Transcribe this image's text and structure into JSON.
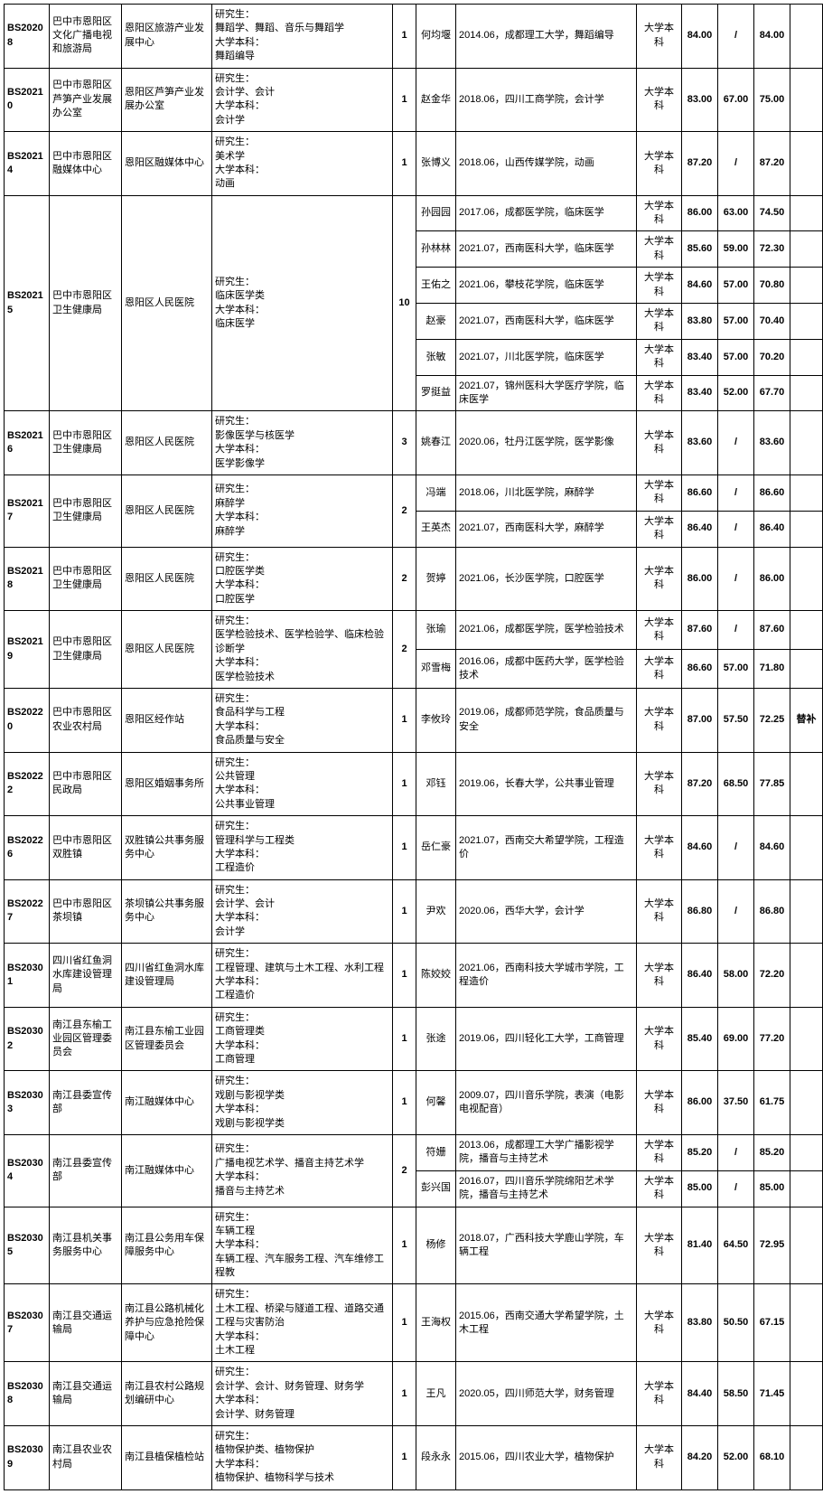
{
  "rows": [
    {
      "code": "BS20208",
      "dept": "巴中市恩阳区文化广播电视和旅游局",
      "unit": "恩阳区旅游产业发展中心",
      "req": "研究生：\n舞蹈学、舞蹈、音乐与舞蹈学\n大学本科：\n舞蹈编导",
      "cnt": "1",
      "people": [
        {
          "name": "何均堰",
          "edu": "2014.06，成都理工大学，舞蹈编导",
          "level": "大学本科",
          "s1": "84.00",
          "s2": "/",
          "s3": "84.00",
          "note": ""
        }
      ]
    },
    {
      "code": "BS20210",
      "dept": "巴中市恩阳区芦笋产业发展办公室",
      "unit": "恩阳区芦笋产业发展办公室",
      "req": "研究生：\n会计学、会计\n大学本科：\n会计学",
      "cnt": "1",
      "people": [
        {
          "name": "赵金华",
          "edu": "2018.06，四川工商学院，会计学",
          "level": "大学本科",
          "s1": "83.00",
          "s2": "67.00",
          "s3": "75.00",
          "note": ""
        }
      ]
    },
    {
      "code": "BS20214",
      "dept": "巴中市恩阳区融媒体中心",
      "unit": "恩阳区融媒体中心",
      "req": "研究生：\n美术学\n大学本科：\n动画",
      "cnt": "1",
      "people": [
        {
          "name": "张博义",
          "edu": "2018.06，山西传媒学院，动画",
          "level": "大学本科",
          "s1": "87.20",
          "s2": "/",
          "s3": "87.20",
          "note": ""
        }
      ]
    },
    {
      "code": "BS20215",
      "dept": "巴中市恩阳区卫生健康局",
      "unit": "恩阳区人民医院",
      "req": "研究生：\n临床医学类\n大学本科：\n临床医学",
      "cnt": "10",
      "people": [
        {
          "name": "孙园园",
          "edu": "2017.06，成都医学院，临床医学",
          "level": "大学本科",
          "s1": "86.00",
          "s2": "63.00",
          "s3": "74.50",
          "note": ""
        },
        {
          "name": "孙林林",
          "edu": "2021.07，西南医科大学，临床医学",
          "level": "大学本科",
          "s1": "85.60",
          "s2": "59.00",
          "s3": "72.30",
          "note": ""
        },
        {
          "name": "王佑之",
          "edu": "2021.06，攀枝花学院，临床医学",
          "level": "大学本科",
          "s1": "84.60",
          "s2": "57.00",
          "s3": "70.80",
          "note": ""
        },
        {
          "name": "赵豪",
          "edu": "2021.07，西南医科大学，临床医学",
          "level": "大学本科",
          "s1": "83.80",
          "s2": "57.00",
          "s3": "70.40",
          "note": ""
        },
        {
          "name": "张敏",
          "edu": "2021.07，川北医学院，临床医学",
          "level": "大学本科",
          "s1": "83.40",
          "s2": "57.00",
          "s3": "70.20",
          "note": ""
        },
        {
          "name": "罗挺益",
          "edu": "2021.07，锦州医科大学医疗学院，临床医学",
          "level": "大学本科",
          "s1": "83.40",
          "s2": "52.00",
          "s3": "67.70",
          "note": ""
        }
      ]
    },
    {
      "code": "BS20216",
      "dept": "巴中市恩阳区卫生健康局",
      "unit": "恩阳区人民医院",
      "req": "研究生：\n影像医学与核医学\n大学本科：\n医学影像学",
      "cnt": "3",
      "people": [
        {
          "name": "姚春江",
          "edu": "2020.06，牡丹江医学院，医学影像",
          "level": "大学本科",
          "s1": "83.60",
          "s2": "/",
          "s3": "83.60",
          "note": ""
        }
      ]
    },
    {
      "code": "BS20217",
      "dept": "巴中市恩阳区卫生健康局",
      "unit": "恩阳区人民医院",
      "req": "研究生：\n麻醉学\n大学本科：\n麻醉学",
      "cnt": "2",
      "people": [
        {
          "name": "冯端",
          "edu": "2018.06，川北医学院，麻醉学",
          "level": "大学本科",
          "s1": "86.60",
          "s2": "/",
          "s3": "86.60",
          "note": ""
        },
        {
          "name": "王英杰",
          "edu": "2021.07，西南医科大学，麻醉学",
          "level": "大学本科",
          "s1": "86.40",
          "s2": "/",
          "s3": "86.40",
          "note": ""
        }
      ]
    },
    {
      "code": "BS20218",
      "dept": "巴中市恩阳区卫生健康局",
      "unit": "恩阳区人民医院",
      "req": "研究生：\n口腔医学类\n大学本科：\n口腔医学",
      "cnt": "2",
      "people": [
        {
          "name": "贺婷",
          "edu": "2021.06，长沙医学院，口腔医学",
          "level": "大学本科",
          "s1": "86.00",
          "s2": "/",
          "s3": "86.00",
          "note": ""
        }
      ]
    },
    {
      "code": "BS20219",
      "dept": "巴中市恩阳区卫生健康局",
      "unit": "恩阳区人民医院",
      "req": "研究生：\n医学检验技术、医学检验学、临床检验诊断学\n大学本科：\n医学检验技术",
      "cnt": "2",
      "people": [
        {
          "name": "张瑜",
          "edu": "2021.06，成都医学院，医学检验技术",
          "level": "大学本科",
          "s1": "87.60",
          "s2": "/",
          "s3": "87.60",
          "note": ""
        },
        {
          "name": "邓雪梅",
          "edu": "2016.06，成都中医药大学，医学检验技术",
          "level": "大学本科",
          "s1": "86.60",
          "s2": "57.00",
          "s3": "71.80",
          "note": ""
        }
      ]
    },
    {
      "code": "BS20220",
      "dept": "巴中市恩阳区农业农村局",
      "unit": "恩阳区经作站",
      "req": "研究生：\n食品科学与工程\n大学本科：\n食品质量与安全",
      "cnt": "1",
      "people": [
        {
          "name": "李攸玲",
          "edu": "2019.06，成都师范学院，食品质量与安全",
          "level": "大学本科",
          "s1": "87.00",
          "s2": "57.50",
          "s3": "72.25",
          "note": "替补"
        }
      ]
    },
    {
      "code": "BS20222",
      "dept": "巴中市恩阳区民政局",
      "unit": "恩阳区婚姻事务所",
      "req": "研究生：\n公共管理\n大学本科：\n公共事业管理",
      "cnt": "1",
      "people": [
        {
          "name": "邓钰",
          "edu": "2019.06，长春大学，公共事业管理",
          "level": "大学本科",
          "s1": "87.20",
          "s2": "68.50",
          "s3": "77.85",
          "note": ""
        }
      ]
    },
    {
      "code": "BS20226",
      "dept": "巴中市恩阳区双胜镇",
      "unit": "双胜镇公共事务服务中心",
      "req": "研究生：\n管理科学与工程类\n大学本科：\n工程造价",
      "cnt": "1",
      "people": [
        {
          "name": "岳仁豪",
          "edu": "2021.07，西南交大希望学院，工程造价",
          "level": "大学本科",
          "s1": "84.60",
          "s2": "/",
          "s3": "84.60",
          "note": ""
        }
      ]
    },
    {
      "code": "BS20227",
      "dept": "巴中市恩阳区茶坝镇",
      "unit": "茶坝镇公共事务服务中心",
      "req": "研究生：\n会计学、会计\n大学本科：\n会计学",
      "cnt": "1",
      "people": [
        {
          "name": "尹欢",
          "edu": "2020.06，西华大学，会计学",
          "level": "大学本科",
          "s1": "86.80",
          "s2": "/",
          "s3": "86.80",
          "note": ""
        }
      ]
    },
    {
      "code": "BS20301",
      "dept": "四川省红鱼洞水库建设管理局",
      "unit": "四川省红鱼洞水库建设管理局",
      "req": "研究生：\n工程管理、建筑与土木工程、水利工程\n大学本科：\n工程造价",
      "cnt": "1",
      "people": [
        {
          "name": "陈姣姣",
          "edu": "2021.06，西南科技大学城市学院，工程造价",
          "level": "大学本科",
          "s1": "86.40",
          "s2": "58.00",
          "s3": "72.20",
          "note": ""
        }
      ]
    },
    {
      "code": "BS20302",
      "dept": "南江县东榆工业园区管理委员会",
      "unit": "南江县东榆工业园区管理委员会",
      "req": "研究生：\n工商管理类\n大学本科：\n工商管理",
      "cnt": "1",
      "people": [
        {
          "name": "张途",
          "edu": "2019.06，四川轻化工大学，工商管理",
          "level": "大学本科",
          "s1": "85.40",
          "s2": "69.00",
          "s3": "77.20",
          "note": ""
        }
      ]
    },
    {
      "code": "BS20303",
      "dept": "南江县委宣传部",
      "unit": "南江融媒体中心",
      "req": "研究生：\n戏剧与影视学类\n大学本科：\n戏剧与影视学类",
      "cnt": "1",
      "people": [
        {
          "name": "何馨",
          "edu": "2009.07，四川音乐学院，表演（电影电视配音）",
          "level": "大学本科",
          "s1": "86.00",
          "s2": "37.50",
          "s3": "61.75",
          "note": ""
        }
      ]
    },
    {
      "code": "BS20304",
      "dept": "南江县委宣传部",
      "unit": "南江融媒体中心",
      "req": "研究生：\n广播电视艺术学、播音主持艺术学\n大学本科：\n播音与主持艺术",
      "cnt": "2",
      "people": [
        {
          "name": "符姗",
          "edu": "2013.06，成都理工大学广播影视学院，播音与主持艺术",
          "level": "大学本科",
          "s1": "85.20",
          "s2": "/",
          "s3": "85.20",
          "note": ""
        },
        {
          "name": "彭兴国",
          "edu": "2016.07，四川音乐学院绵阳艺术学院，播音与主持艺术",
          "level": "大学本科",
          "s1": "85.00",
          "s2": "/",
          "s3": "85.00",
          "note": ""
        }
      ]
    },
    {
      "code": "BS20305",
      "dept": "南江县机关事务服务中心",
      "unit": "南江县公务用车保障服务中心",
      "req": "研究生：\n车辆工程\n大学本科：\n车辆工程、汽车服务工程、汽车维修工程教",
      "cnt": "1",
      "people": [
        {
          "name": "杨修",
          "edu": "2018.07，广西科技大学鹿山学院，车辆工程",
          "level": "大学本科",
          "s1": "81.40",
          "s2": "64.50",
          "s3": "72.95",
          "note": ""
        }
      ]
    },
    {
      "code": "BS20307",
      "dept": "南江县交通运输局",
      "unit": "南江县公路机械化养护与应急抢险保障中心",
      "req": "研究生：\n土木工程、桥梁与隧道工程、道路交通工程与灾害防治\n大学本科：\n土木工程",
      "cnt": "1",
      "people": [
        {
          "name": "王海权",
          "edu": "2015.06，西南交通大学希望学院，土木工程",
          "level": "大学本科",
          "s1": "83.80",
          "s2": "50.50",
          "s3": "67.15",
          "note": ""
        }
      ]
    },
    {
      "code": "BS20308",
      "dept": "南江县交通运输局",
      "unit": "南江县农村公路规划编研中心",
      "req": "研究生：\n会计学、会计、财务管理、财务学\n大学本科：\n会计学、财务管理",
      "cnt": "1",
      "people": [
        {
          "name": "王凡",
          "edu": "2020.05，四川师范大学，财务管理",
          "level": "大学本科",
          "s1": "84.40",
          "s2": "58.50",
          "s3": "71.45",
          "note": ""
        }
      ]
    },
    {
      "code": "BS20309",
      "dept": "南江县农业农村局",
      "unit": "南江县植保植检站",
      "req": "研究生：\n植物保护类、植物保护\n大学本科：\n植物保护、植物科学与技术",
      "cnt": "1",
      "people": [
        {
          "name": "段永永",
          "edu": "2015.06，四川农业大学，植物保护",
          "level": "大学本科",
          "s1": "84.20",
          "s2": "52.00",
          "s3": "68.10",
          "note": ""
        }
      ]
    }
  ]
}
